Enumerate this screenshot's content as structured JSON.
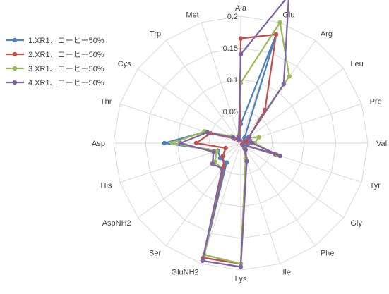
{
  "chart_data": {
    "type": "radar",
    "title": "",
    "categories": [
      "Ala",
      "Glu",
      "Arg",
      "Leu",
      "Pro",
      "Val",
      "Tyr",
      "Gly",
      "Phe",
      "Ile",
      "Lys",
      "GluNH2",
      "Ser",
      "AspNH2",
      "His",
      "Asp",
      "Thr",
      "Cys",
      "Trp",
      "Met"
    ],
    "rlim": [
      0,
      0.2
    ],
    "ticks": [
      {
        "value": 0.05,
        "label": "0.05"
      },
      {
        "value": 0.1,
        "label": "0.1"
      },
      {
        "value": 0.15,
        "label": "0.15"
      },
      {
        "value": 0.2,
        "label": "0.2"
      }
    ],
    "grid": true,
    "legend_position": "left",
    "series": [
      {
        "name": "1.XR1、コーヒー50%",
        "color": "#4f81bd",
        "values": [
          0.03,
          0.18,
          0.01,
          0.01,
          0.005,
          0.012,
          0.01,
          0.005,
          0.013,
          0.03,
          0.19,
          0.19,
          0.038,
          0.04,
          0.038,
          0.12,
          0.058,
          0.015,
          0.006,
          0.01
        ]
      },
      {
        "name": "2.XR1、コーヒー50%",
        "color": "#c0504d",
        "values": [
          0.165,
          0.18,
          0.065,
          0.016,
          0.008,
          0.02,
          0.057,
          0.003,
          0.01,
          0.025,
          0.19,
          0.19,
          0.045,
          0.035,
          0.025,
          0.07,
          0.05,
          0.012,
          0.005,
          0.005
        ]
      },
      {
        "name": "3.XR1、コーヒー50%",
        "color": "#9bbb59",
        "values": [
          0.095,
          0.2,
          0.13,
          0.015,
          0.03,
          0.022,
          0.06,
          0.006,
          0.012,
          0.025,
          0.19,
          0.185,
          0.05,
          0.05,
          0.04,
          0.108,
          0.06,
          0.018,
          0.006,
          0.012
        ]
      },
      {
        "name": "4.XR1、コーヒー50%",
        "color": "#8064a2",
        "values": [
          0.14,
          0.245,
          0.115,
          0.015,
          0.015,
          0.018,
          0.065,
          0.004,
          0.012,
          0.03,
          0.195,
          0.195,
          0.05,
          0.055,
          0.045,
          0.095,
          0.055,
          0.015,
          0.006,
          0.01
        ]
      }
    ]
  }
}
